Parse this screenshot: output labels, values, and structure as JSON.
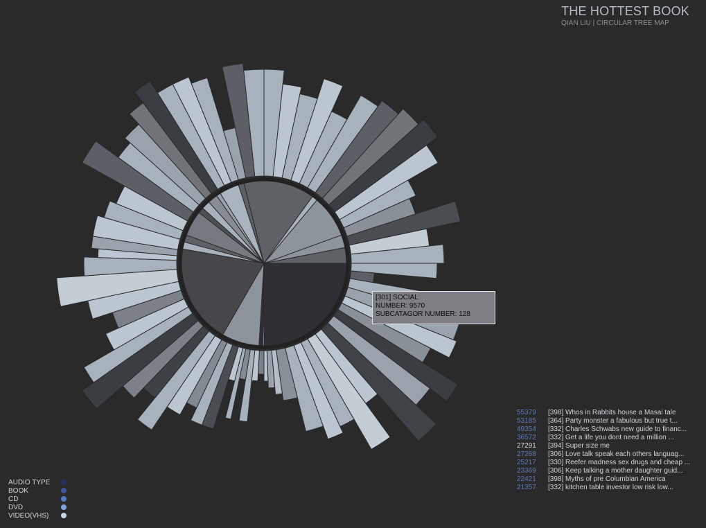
{
  "header": {
    "title": "THE HOTTEST BOOK",
    "subtitle": "QIAN LIU | CIRCULAR TREE MAP"
  },
  "tooltip": {
    "line1": "[301]  SOCIAL",
    "line2": "NUMBER: 9570",
    "line3": "SUBCATAGOR NUMBER: 128"
  },
  "legend": [
    {
      "label": "AUDIO TYPE",
      "color": "#25305a"
    },
    {
      "label": "BOOK",
      "color": "#3e54a0"
    },
    {
      "label": "CD",
      "color": "#5878c4"
    },
    {
      "label": "DVD",
      "color": "#7fa6dc"
    },
    {
      "label": "VIDEO(VHS)",
      "color": "#bcd8ec"
    }
  ],
  "top_list": [
    {
      "count": "55379",
      "text": "[398]  Whos in Rabbits house a Masai tale",
      "highlight": false
    },
    {
      "count": "53185",
      "text": "[364]  Party monster a fabulous but true t...",
      "highlight": false
    },
    {
      "count": "49354",
      "text": "[332]  Charles Schwabs new guide to financ...",
      "highlight": false
    },
    {
      "count": "36572",
      "text": "[332]  Get a life you dont need a million ...",
      "highlight": false
    },
    {
      "count": "27291",
      "text": "[394]  Super size me",
      "highlight": true
    },
    {
      "count": "27268",
      "text": "[306]  Love talk speak each others languag...",
      "highlight": false
    },
    {
      "count": "25217",
      "text": "[330]  Reefer madness sex drugs and cheap ...",
      "highlight": false
    },
    {
      "count": "23369",
      "text": "[306]  Keep talking a mother daughter guid...",
      "highlight": false
    },
    {
      "count": "22421",
      "text": "[398]  Myths of pre Columbian America",
      "highlight": false
    },
    {
      "count": "21357",
      "text": "[332]  kitchen table investor low risk low...",
      "highlight": false
    }
  ],
  "chart_data": {
    "type": "radial-treemap",
    "inner_categories": [
      {
        "start": 0,
        "end": 90,
        "color": "#2f3036"
      },
      {
        "start": 90,
        "end": 90.8,
        "color": "#c4ccd4"
      },
      {
        "start": 90.8,
        "end": 93.5,
        "color": "#2f3036"
      },
      {
        "start": 93.5,
        "end": 120,
        "color": "#8d949c"
      },
      {
        "start": 120,
        "end": 190,
        "color": "#45474b"
      },
      {
        "start": 190,
        "end": 195,
        "color": "#a8b2bd"
      },
      {
        "start": 195,
        "end": 200,
        "color": "#5e6166"
      },
      {
        "start": 200,
        "end": 218,
        "color": "#757a80"
      },
      {
        "start": 218,
        "end": 222,
        "color": "#4c4f53"
      },
      {
        "start": 222,
        "end": 228,
        "color": "#a8b2bd"
      },
      {
        "start": 228,
        "end": 235,
        "color": "#888d93"
      },
      {
        "start": 235,
        "end": 238,
        "color": "#9aa3ac"
      },
      {
        "start": 238,
        "end": 252,
        "color": "#aab4be"
      },
      {
        "start": 252,
        "end": 256,
        "color": "#5c5f64"
      },
      {
        "start": 256,
        "end": 306,
        "color": "#5e6166"
      },
      {
        "start": 306,
        "end": 310,
        "color": "#a8b2bd"
      },
      {
        "start": 310,
        "end": 340,
        "color": "#8d949c"
      },
      {
        "start": 340,
        "end": 349,
        "color": "#8d949c"
      },
      {
        "start": 349,
        "end": 360,
        "color": "#5e6166"
      }
    ],
    "outer_bars": [
      {
        "s": 0,
        "e": 5,
        "r": 250,
        "c": "#a8b2bd"
      },
      {
        "s": 5,
        "e": 10,
        "r": 160,
        "c": "#5c6066"
      },
      {
        "s": 10,
        "e": 16,
        "r": 280,
        "c": "#a8b2bd"
      },
      {
        "s": 16,
        "e": 22,
        "r": 295,
        "c": "#9aa3ac"
      },
      {
        "s": 22,
        "e": 27,
        "r": 300,
        "c": "#bcc6d0"
      },
      {
        "s": 27,
        "e": 32,
        "r": 270,
        "c": "#8a9098"
      },
      {
        "s": 32,
        "e": 37,
        "r": 330,
        "c": "#3a3d42"
      },
      {
        "s": 37,
        "e": 43,
        "r": 300,
        "c": "#9aa3ac"
      },
      {
        "s": 43,
        "e": 49,
        "r": 340,
        "c": "#3f4246"
      },
      {
        "s": 49,
        "e": 54,
        "r": 250,
        "c": "#bcc6d0"
      },
      {
        "s": 54,
        "e": 60,
        "r": 310,
        "c": "#c4ccd4"
      },
      {
        "s": 60,
        "e": 65,
        "r": 260,
        "c": "#a8b2bd"
      },
      {
        "s": 65,
        "e": 70,
        "r": 270,
        "c": "#bcc6d0"
      },
      {
        "s": 70,
        "e": 76,
        "r": 250,
        "c": "#a8b2bd"
      },
      {
        "s": 76,
        "e": 82,
        "r": 200,
        "c": "#8a9098"
      },
      {
        "s": 82,
        "e": 85,
        "r": 190,
        "c": "#b4bec8"
      },
      {
        "s": 85,
        "e": 88,
        "r": 180,
        "c": "#9aa3ac"
      },
      {
        "s": 88,
        "e": 90,
        "r": 170,
        "c": "#bcc6d0"
      },
      {
        "s": 90,
        "e": 93,
        "r": 160,
        "c": "#7a8088"
      },
      {
        "s": 93,
        "e": 96,
        "r": 170,
        "c": "#bcc6d0"
      },
      {
        "s": 96,
        "e": 99,
        "r": 230,
        "c": "#a8b2bd"
      },
      {
        "s": 99,
        "e": 102,
        "r": 170,
        "c": "#848a92"
      },
      {
        "s": 102,
        "e": 104,
        "r": 230,
        "c": "#a8b2bd"
      },
      {
        "s": 104,
        "e": 107,
        "r": 175,
        "c": "#bcc6d0"
      },
      {
        "s": 107,
        "e": 111,
        "r": 250,
        "c": "#4a4d52"
      },
      {
        "s": 111,
        "e": 115,
        "r": 250,
        "c": "#a8b2bd"
      },
      {
        "s": 115,
        "e": 119,
        "r": 230,
        "c": "#848a92"
      },
      {
        "s": 119,
        "e": 124,
        "r": 250,
        "c": "#bcc6d0"
      },
      {
        "s": 124,
        "e": 129,
        "r": 290,
        "c": "#a8b2bd"
      },
      {
        "s": 129,
        "e": 134,
        "r": 250,
        "c": "#3e4145"
      },
      {
        "s": 134,
        "e": 139,
        "r": 270,
        "c": "#7c8189"
      },
      {
        "s": 139,
        "e": 145,
        "r": 320,
        "c": "#3a3d42"
      },
      {
        "s": 145,
        "e": 150,
        "r": 300,
        "c": "#a8b2bd"
      },
      {
        "s": 150,
        "e": 156,
        "r": 250,
        "c": "#bcc6d0"
      },
      {
        "s": 156,
        "e": 162,
        "r": 230,
        "c": "#7c8189"
      },
      {
        "s": 162,
        "e": 168,
        "r": 260,
        "c": "#bcc6d0"
      },
      {
        "s": 168,
        "e": 176,
        "r": 300,
        "c": "#c4ccd4"
      },
      {
        "s": 176,
        "e": 182,
        "r": 260,
        "c": "#a8b2bd"
      },
      {
        "s": 182,
        "e": 185,
        "r": 240,
        "c": "#bcc6d0"
      },
      {
        "s": 185,
        "e": 189,
        "r": 250,
        "c": "#9aa3ac"
      },
      {
        "s": 189,
        "e": 196,
        "r": 250,
        "c": "#bcc6d0"
      },
      {
        "s": 196,
        "e": 202,
        "r": 240,
        "c": "#a8b2bd"
      },
      {
        "s": 202,
        "e": 209,
        "r": 230,
        "c": "#bcc6d0"
      },
      {
        "s": 209,
        "e": 216,
        "r": 300,
        "c": "#5c6066"
      },
      {
        "s": 216,
        "e": 222,
        "r": 260,
        "c": "#a8b2bd"
      },
      {
        "s": 222,
        "e": 228,
        "r": 270,
        "c": "#9aa3ac"
      },
      {
        "s": 228,
        "e": 233,
        "r": 290,
        "c": "#707479"
      },
      {
        "s": 233,
        "e": 238,
        "r": 310,
        "c": "#3a3d42"
      },
      {
        "s": 238,
        "e": 243,
        "r": 290,
        "c": "#a8b2bd"
      },
      {
        "s": 243,
        "e": 248,
        "r": 290,
        "c": "#bcc6d0"
      },
      {
        "s": 248,
        "e": 253,
        "r": 280,
        "c": "#a8b2bd"
      },
      {
        "s": 253,
        "e": 258,
        "r": 200,
        "c": "#9aa3ac"
      },
      {
        "s": 258,
        "e": 264,
        "r": 290,
        "c": "#5c6066"
      },
      {
        "s": 264,
        "e": 270,
        "r": 280,
        "c": "#a8b2bd"
      },
      {
        "s": 270,
        "e": 276,
        "r": 280,
        "c": "#a8b2bd"
      },
      {
        "s": 276,
        "e": 282,
        "r": 260,
        "c": "#bcc6d0"
      },
      {
        "s": 282,
        "e": 288,
        "r": 250,
        "c": "#a8b2bd"
      },
      {
        "s": 288,
        "e": 294,
        "r": 280,
        "c": "#bcc6d0"
      },
      {
        "s": 294,
        "e": 300,
        "r": 240,
        "c": "#a8b2bd"
      },
      {
        "s": 300,
        "e": 306,
        "r": 280,
        "c": "#a8b2bd"
      },
      {
        "s": 306,
        "e": 312,
        "r": 290,
        "c": "#5c6066"
      },
      {
        "s": 312,
        "e": 318,
        "r": 300,
        "c": "#707479"
      },
      {
        "s": 318,
        "e": 324,
        "r": 310,
        "c": "#3a3d42"
      },
      {
        "s": 324,
        "e": 330,
        "r": 290,
        "c": "#bcc6d0"
      },
      {
        "s": 330,
        "e": 336,
        "r": 240,
        "c": "#a8b2bd"
      },
      {
        "s": 336,
        "e": 342,
        "r": 230,
        "c": "#8a9098"
      },
      {
        "s": 342,
        "e": 348,
        "r": 290,
        "c": "#4a4d52"
      },
      {
        "s": 348,
        "e": 354,
        "r": 240,
        "c": "#c4ccd4"
      },
      {
        "s": 354,
        "e": 360,
        "r": 260,
        "c": "#a8b2bd"
      }
    ]
  }
}
